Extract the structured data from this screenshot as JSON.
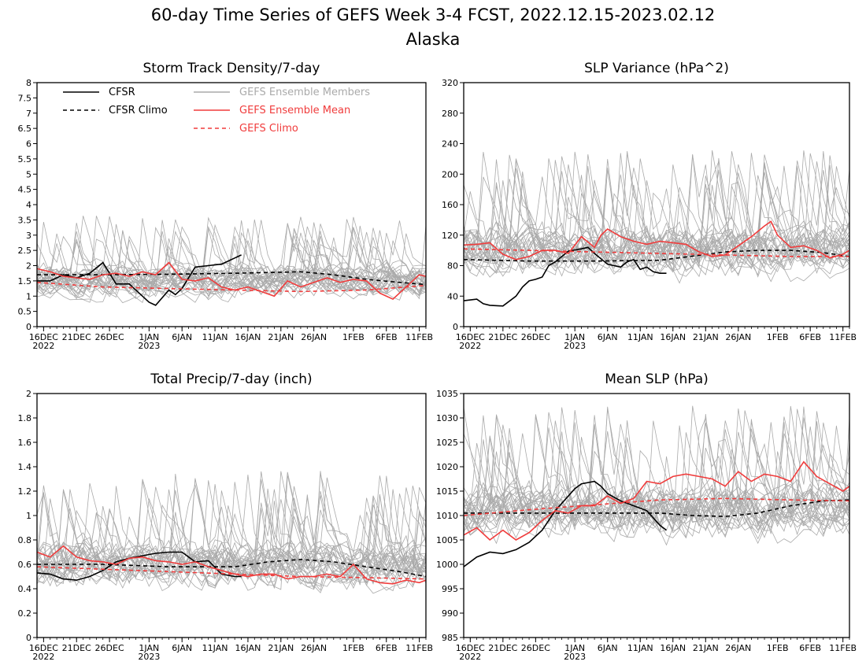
{
  "title": "60-day Time Series of GEFS Week 3-4 FCST, 2022.12.15-2023.02.12",
  "subtitle": "Alaska",
  "colors": {
    "cfsr": "#000000",
    "members": "#aaaaaa",
    "mean": "#f03c3c",
    "climo": "#f03c3c"
  },
  "legend": [
    {
      "label": "CFSR",
      "color": "#000000",
      "dash": false
    },
    {
      "label": "CFSR Climo",
      "color": "#000000",
      "dash": true
    },
    {
      "label": "GEFS Ensemble Members",
      "color": "#aaaaaa",
      "dash": false
    },
    {
      "label": "GEFS Ensemble Mean",
      "color": "#f03c3c",
      "dash": false
    },
    {
      "label": "GEFS Climo",
      "color": "#f03c3c",
      "dash": true
    }
  ],
  "x_ticks": [
    {
      "day": 1,
      "label": "16DEC",
      "sub": "2022"
    },
    {
      "day": 6,
      "label": "21DEC",
      "sub": ""
    },
    {
      "day": 11,
      "label": "26DEC",
      "sub": ""
    },
    {
      "day": 17,
      "label": "1JAN",
      "sub": "2023"
    },
    {
      "day": 22,
      "label": "6JAN",
      "sub": ""
    },
    {
      "day": 27,
      "label": "11JAN",
      "sub": ""
    },
    {
      "day": 32,
      "label": "16JAN",
      "sub": ""
    },
    {
      "day": 37,
      "label": "21JAN",
      "sub": ""
    },
    {
      "day": 42,
      "label": "26JAN",
      "sub": ""
    },
    {
      "day": 48,
      "label": "1FEB",
      "sub": ""
    },
    {
      "day": 53,
      "label": "6FEB",
      "sub": ""
    },
    {
      "day": 58,
      "label": "11FEB",
      "sub": ""
    }
  ],
  "chart_data": [
    {
      "type": "line",
      "title": "Storm Track Density/7-day",
      "x_range_days": [
        0,
        59
      ],
      "ylim": [
        0,
        8
      ],
      "y_ticks": [
        0,
        0.5,
        1,
        1.5,
        2,
        2.5,
        3,
        3.5,
        4,
        4.5,
        5,
        5.5,
        6,
        6.5,
        7,
        7.5,
        8
      ],
      "show_legend": true,
      "members": {
        "count": 31,
        "base": 1.5,
        "spread": 0.9,
        "max": 5.1,
        "min": 0
      },
      "series": [
        {
          "name": "CFSR",
          "style": "solid",
          "color": "#000000",
          "x": [
            0,
            2,
            4,
            6,
            8,
            10,
            12,
            14,
            16,
            17,
            18,
            20,
            21,
            22,
            24,
            26,
            28,
            30,
            31
          ],
          "y": [
            1.5,
            1.5,
            1.7,
            1.6,
            1.75,
            2.1,
            1.4,
            1.4,
            1.0,
            0.8,
            0.7,
            1.2,
            1.05,
            1.25,
            1.95,
            2.0,
            2.05,
            2.25,
            2.35
          ]
        },
        {
          "name": "CFSR Climo",
          "style": "dashed",
          "color": "#000000",
          "x": [
            0,
            10,
            20,
            30,
            40,
            45,
            50,
            55,
            59
          ],
          "y": [
            1.7,
            1.7,
            1.72,
            1.75,
            1.8,
            1.7,
            1.55,
            1.45,
            1.38
          ]
        },
        {
          "name": "GEFS Ensemble Mean",
          "style": "solid",
          "color": "#f03c3c",
          "x": [
            0,
            2,
            4,
            6,
            8,
            10,
            12,
            14,
            16,
            18,
            20,
            22,
            24,
            26,
            28,
            30,
            32,
            34,
            36,
            38,
            40,
            42,
            44,
            46,
            48,
            50,
            52,
            54,
            56,
            58,
            59
          ],
          "y": [
            1.9,
            1.8,
            1.65,
            1.6,
            1.55,
            1.7,
            1.75,
            1.65,
            1.8,
            1.7,
            2.1,
            1.55,
            1.5,
            1.6,
            1.3,
            1.2,
            1.3,
            1.15,
            1.0,
            1.5,
            1.3,
            1.45,
            1.6,
            1.45,
            1.55,
            1.5,
            1.1,
            0.9,
            1.3,
            1.7,
            1.65
          ]
        },
        {
          "name": "GEFS Climo",
          "style": "dashed",
          "color": "#f03c3c",
          "x": [
            0,
            10,
            20,
            30,
            40,
            50,
            59
          ],
          "y": [
            1.45,
            1.3,
            1.25,
            1.2,
            1.15,
            1.2,
            1.35
          ]
        }
      ]
    },
    {
      "type": "line",
      "title": "SLP Variance (hPa^2)",
      "x_range_days": [
        0,
        59
      ],
      "ylim": [
        0,
        320
      ],
      "y_ticks": [
        0,
        40,
        80,
        120,
        160,
        200,
        240,
        280,
        320
      ],
      "show_legend": false,
      "members": {
        "count": 31,
        "base": 100,
        "spread": 55,
        "max": 298,
        "min": 20
      },
      "series": [
        {
          "name": "CFSR",
          "style": "solid",
          "color": "#000000",
          "x": [
            0,
            2,
            3,
            4,
            6,
            8,
            9,
            10,
            11,
            12,
            13,
            14,
            16,
            18,
            19,
            20,
            22,
            24,
            25,
            26,
            27,
            28,
            29,
            30,
            31
          ],
          "y": [
            34,
            36,
            30,
            28,
            27,
            40,
            52,
            60,
            62,
            65,
            80,
            85,
            99,
            102,
            104,
            96,
            82,
            78,
            85,
            88,
            75,
            78,
            72,
            70,
            70
          ]
        },
        {
          "name": "CFSR Climo",
          "style": "dashed",
          "color": "#000000",
          "x": [
            0,
            10,
            20,
            30,
            40,
            45,
            50,
            55,
            59
          ],
          "y": [
            88,
            86,
            86,
            87,
            98,
            100,
            100,
            97,
            92
          ]
        },
        {
          "name": "GEFS Ensemble Mean",
          "style": "solid",
          "color": "#f03c3c",
          "x": [
            0,
            2,
            4,
            6,
            8,
            10,
            12,
            14,
            16,
            18,
            20,
            21,
            22,
            24,
            26,
            28,
            30,
            32,
            34,
            36,
            38,
            40,
            42,
            44,
            46,
            47,
            48,
            50,
            52,
            54,
            56,
            58,
            59
          ],
          "y": [
            107,
            108,
            110,
            95,
            88,
            92,
            100,
            100,
            96,
            118,
            104,
            120,
            128,
            118,
            112,
            108,
            112,
            110,
            108,
            98,
            92,
            94,
            106,
            118,
            132,
            138,
            120,
            104,
            106,
            100,
            90,
            95,
            100
          ]
        },
        {
          "name": "GEFS Climo",
          "style": "dashed",
          "color": "#f03c3c",
          "x": [
            0,
            10,
            20,
            30,
            40,
            50,
            59
          ],
          "y": [
            102,
            100,
            98,
            96,
            94,
            92,
            92
          ]
        }
      ]
    },
    {
      "type": "line",
      "title": "Total Precip/7-day (inch)",
      "x_range_days": [
        0,
        59
      ],
      "ylim": [
        0,
        2
      ],
      "y_ticks": [
        0,
        0.2,
        0.4,
        0.6,
        0.8,
        1,
        1.2,
        1.4,
        1.6,
        1.8,
        2
      ],
      "show_legend": false,
      "members": {
        "count": 31,
        "base": 0.6,
        "spread": 0.32,
        "max": 1.38,
        "min": 0.1
      },
      "series": [
        {
          "name": "CFSR",
          "style": "solid",
          "color": "#000000",
          "x": [
            0,
            2,
            4,
            6,
            8,
            10,
            12,
            14,
            16,
            18,
            20,
            22,
            24,
            26,
            28,
            30,
            31
          ],
          "y": [
            0.53,
            0.52,
            0.48,
            0.47,
            0.5,
            0.55,
            0.62,
            0.65,
            0.67,
            0.69,
            0.7,
            0.7,
            0.62,
            0.63,
            0.52,
            0.5,
            0.5
          ]
        },
        {
          "name": "CFSR Climo",
          "style": "dashed",
          "color": "#000000",
          "x": [
            0,
            10,
            20,
            30,
            35,
            40,
            45,
            50,
            55,
            59
          ],
          "y": [
            0.6,
            0.6,
            0.58,
            0.58,
            0.62,
            0.64,
            0.62,
            0.58,
            0.54,
            0.5
          ]
        },
        {
          "name": "GEFS Ensemble Mean",
          "style": "solid",
          "color": "#f03c3c",
          "x": [
            0,
            2,
            4,
            6,
            8,
            10,
            12,
            14,
            16,
            18,
            20,
            22,
            24,
            26,
            28,
            30,
            32,
            34,
            36,
            38,
            40,
            42,
            44,
            46,
            48,
            50,
            52,
            54,
            56,
            58,
            59
          ],
          "y": [
            0.7,
            0.66,
            0.75,
            0.66,
            0.63,
            0.62,
            0.6,
            0.65,
            0.66,
            0.63,
            0.62,
            0.6,
            0.62,
            0.58,
            0.55,
            0.52,
            0.5,
            0.52,
            0.52,
            0.48,
            0.5,
            0.5,
            0.52,
            0.5,
            0.6,
            0.48,
            0.45,
            0.44,
            0.47,
            0.45,
            0.47
          ]
        },
        {
          "name": "GEFS Climo",
          "style": "dashed",
          "color": "#f03c3c",
          "x": [
            0,
            10,
            20,
            30,
            40,
            50,
            59
          ],
          "y": [
            0.58,
            0.56,
            0.54,
            0.52,
            0.5,
            0.49,
            0.48
          ]
        }
      ]
    },
    {
      "type": "line",
      "title": "Mean SLP (hPa)",
      "x_range_days": [
        0,
        59
      ],
      "ylim": [
        985,
        1035
      ],
      "y_ticks": [
        985,
        990,
        995,
        1000,
        1005,
        1010,
        1015,
        1020,
        1025,
        1030,
        1035
      ],
      "show_legend": false,
      "members": {
        "count": 31,
        "base": 1011,
        "spread": 9,
        "max": 1035,
        "min": 986
      },
      "series": [
        {
          "name": "CFSR",
          "style": "solid",
          "color": "#000000",
          "x": [
            0,
            2,
            4,
            6,
            8,
            10,
            12,
            14,
            16,
            17,
            18,
            20,
            21,
            22,
            24,
            26,
            28,
            30,
            31
          ],
          "y": [
            999.5,
            1001.5,
            1002.5,
            1002.2,
            1003,
            1004.5,
            1007,
            1011,
            1014,
            1015.5,
            1016.5,
            1017,
            1016,
            1014.5,
            1013,
            1012,
            1011,
            1008,
            1007
          ]
        },
        {
          "name": "CFSR Climo",
          "style": "dashed",
          "color": "#000000",
          "x": [
            0,
            10,
            20,
            30,
            35,
            40,
            45,
            50,
            55,
            59
          ],
          "y": [
            1010.5,
            1010.5,
            1010.5,
            1010.5,
            1010,
            1009.8,
            1010.5,
            1012,
            1013,
            1013.2
          ]
        },
        {
          "name": "GEFS Ensemble Mean",
          "style": "solid",
          "color": "#f03c3c",
          "x": [
            0,
            2,
            4,
            6,
            8,
            10,
            12,
            14,
            16,
            18,
            20,
            22,
            24,
            26,
            28,
            30,
            32,
            34,
            36,
            38,
            40,
            42,
            44,
            46,
            48,
            50,
            52,
            54,
            56,
            58,
            59
          ],
          "y": [
            1006,
            1007.5,
            1005,
            1007,
            1005,
            1006.5,
            1009,
            1011,
            1010.5,
            1012,
            1012,
            1014,
            1012.5,
            1013.5,
            1017,
            1016.5,
            1018,
            1018.5,
            1018,
            1017.5,
            1016,
            1019,
            1017,
            1018.5,
            1018,
            1017,
            1021,
            1018,
            1016.5,
            1015,
            1016
          ]
        },
        {
          "name": "GEFS Climo",
          "style": "dashed",
          "color": "#f03c3c",
          "x": [
            0,
            10,
            20,
            30,
            40,
            50,
            59
          ],
          "y": [
            1010,
            1011.2,
            1012.2,
            1013.2,
            1013.5,
            1013.2,
            1013
          ]
        }
      ]
    }
  ]
}
